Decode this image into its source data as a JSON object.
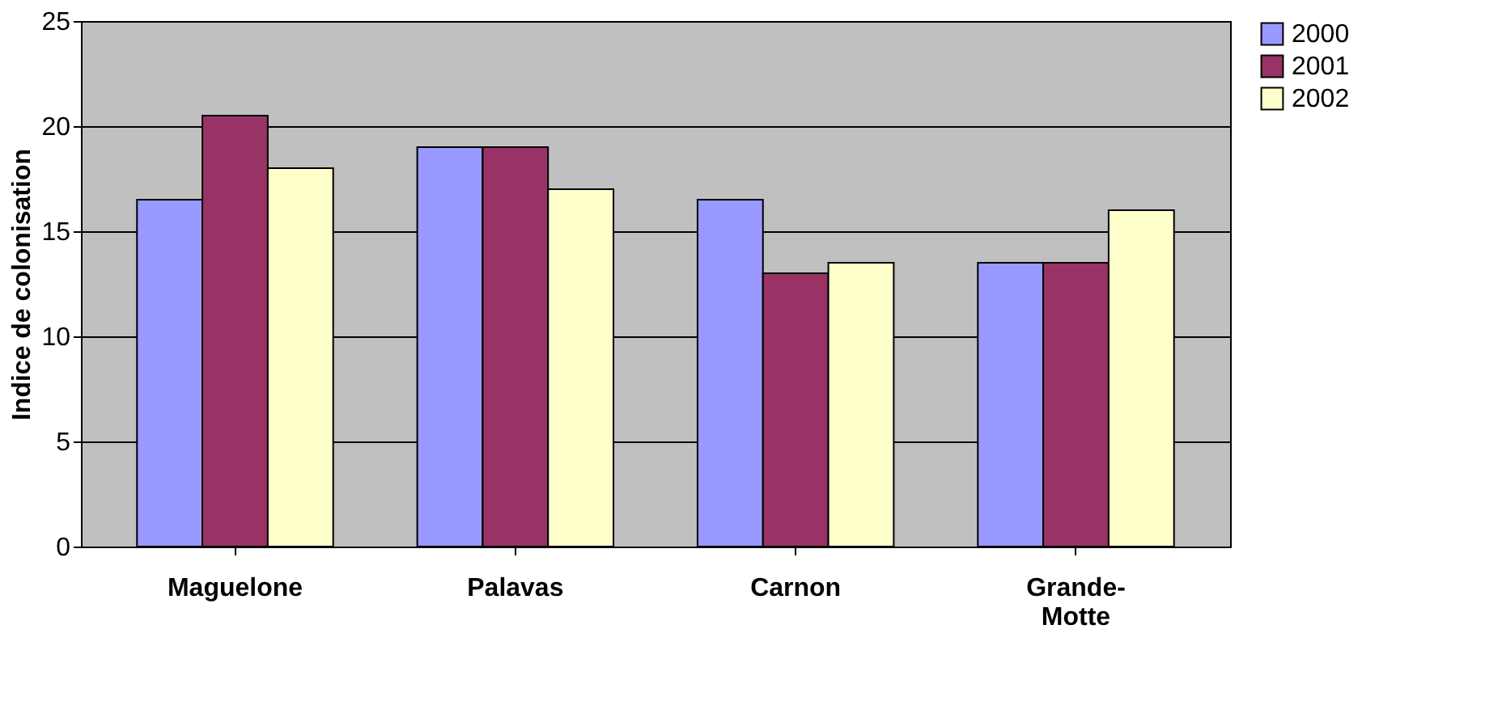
{
  "chart_data": {
    "type": "bar",
    "ylabel": "Indice de colonisation",
    "categories": [
      "Maguelone",
      "Palavas",
      "Carnon",
      "Grande-Motte"
    ],
    "series": [
      {
        "name": "2000",
        "color": "#9999ff",
        "values": [
          16.5,
          19,
          16.5,
          13.5
        ]
      },
      {
        "name": "2001",
        "color": "#993366",
        "values": [
          20.5,
          19,
          13,
          13.5
        ]
      },
      {
        "name": "2002",
        "color": "#ffffcc",
        "values": [
          18,
          17,
          13.5,
          16
        ]
      }
    ],
    "ylim": [
      0,
      25
    ],
    "yticks": [
      0,
      5,
      10,
      15,
      20,
      25
    ],
    "grid": "y",
    "legend": "right"
  }
}
